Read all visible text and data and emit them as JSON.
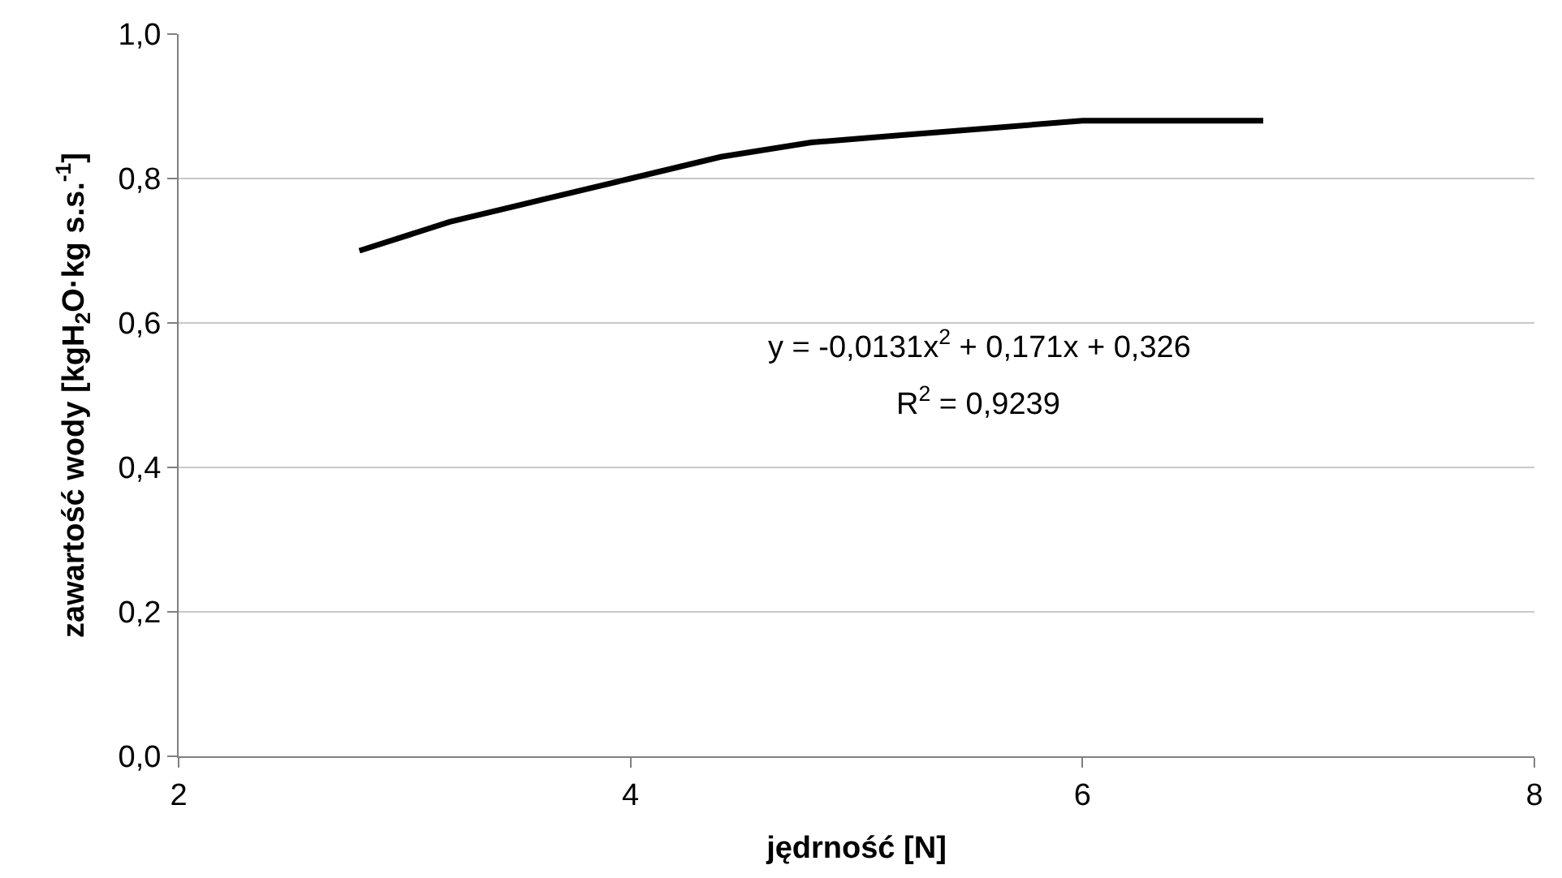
{
  "chart_data": {
    "type": "line",
    "xlabel": "jędrność [N]",
    "ylabel": "zawartość wody [kgH$_{2}$O·kg s.s.$^{-1}$]",
    "xlim": [
      2,
      8
    ],
    "xticks": [
      2,
      4,
      6,
      8
    ],
    "ylim": [
      0,
      1
    ],
    "yticks": [
      {
        "value": 0,
        "label": "0,0"
      },
      {
        "value": 0.2,
        "label": "0,2"
      },
      {
        "value": 0.4,
        "label": "0,4"
      },
      {
        "value": 0.6,
        "label": "0,6"
      },
      {
        "value": 0.8,
        "label": "0,8"
      },
      {
        "value": 1,
        "label": "1,0"
      }
    ],
    "grid": "y",
    "marker": "none",
    "line_style": "solid",
    "series": [
      {
        "color": "#000000",
        "x": [
          2.8,
          3.2,
          3.6,
          4.0,
          4.4,
          4.8,
          5.2,
          5.6,
          6.0,
          6.4,
          6.8
        ],
        "values": [
          0.7,
          0.74,
          0.77,
          0.8,
          0.83,
          0.85,
          0.86,
          0.87,
          0.88,
          0.88,
          0.88
        ]
      }
    ],
    "annotations": [
      "y = -0,0131x$^{2}$ + 0,171x + 0,326",
      "R$^{2}$ = 0,9239"
    ]
  }
}
